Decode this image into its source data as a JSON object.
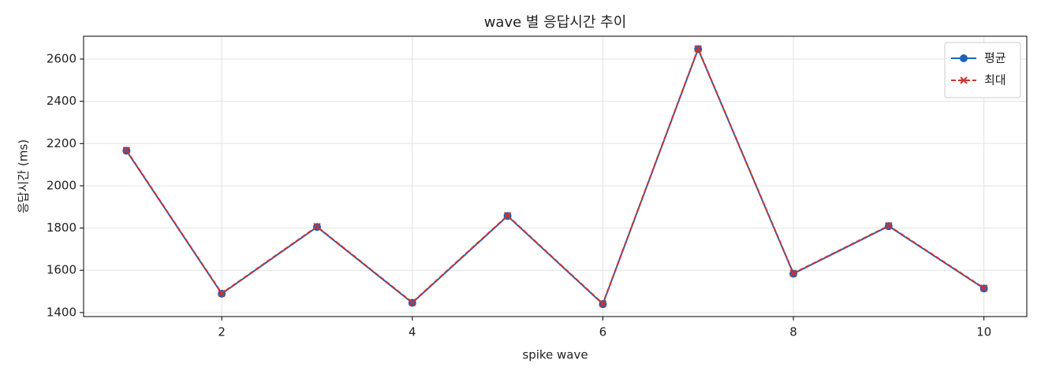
{
  "chart_data": {
    "type": "line",
    "title": "wave 별 응답시간 추이",
    "x_label": "spike wave",
    "y_label": "응답시간 (ms)",
    "x": [
      1,
      2,
      3,
      4,
      5,
      6,
      7,
      8,
      9,
      10
    ],
    "series": [
      {
        "name": "평균",
        "color": "#1f63b8",
        "marker": "circle",
        "dash": false,
        "values": [
          2166,
          1489,
          1805,
          1446,
          1857,
          1440,
          2647,
          1584,
          1809,
          1514
        ]
      },
      {
        "name": "최대",
        "color": "#d0312d",
        "marker": "x",
        "dash": true,
        "values": [
          2168,
          1491,
          1807,
          1448,
          1859,
          1442,
          2649,
          1586,
          1811,
          1516
        ]
      }
    ],
    "xlim": [
      0.55,
      10.45
    ],
    "ylim": [
      1381,
      2708
    ],
    "xticks": [
      2,
      4,
      6,
      8,
      10
    ],
    "yticks": [
      1400,
      1600,
      1800,
      2000,
      2200,
      2400,
      2600
    ],
    "grid": true,
    "legend": "upper right"
  }
}
